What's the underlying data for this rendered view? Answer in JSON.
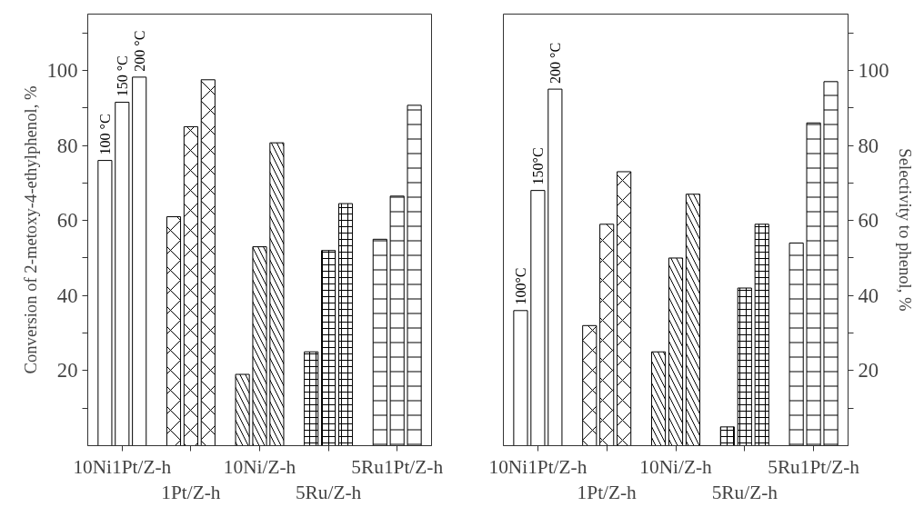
{
  "chart_data": [
    {
      "type": "bar",
      "categories": [
        "10Ni1Pt/Z-h",
        "1Pt/Z-h",
        "10Ni/Z-h",
        "5Ru/Z-h",
        "5Ru1Pt/Z-h"
      ],
      "series": [
        {
          "color": "#ffffff",
          "values": [
            76,
            61,
            19,
            25,
            55
          ]
        },
        {
          "color": "#ffffff",
          "values": [
            91.5,
            85,
            53,
            52,
            66.5
          ]
        },
        {
          "color": "#ffffff",
          "values": [
            98.2,
            97.5,
            80.7,
            64.5,
            90.7
          ]
        }
      ],
      "ylabel": "Conversion of 2-metoxy-4-ethylphenol, %",
      "ylim": [
        0,
        115
      ],
      "yticks": [
        {
          "value": 10,
          "label": null
        },
        20,
        {
          "value": 30,
          "label": null
        },
        40,
        {
          "value": 50,
          "label": null
        },
        60,
        {
          "value": 70,
          "label": null
        },
        80,
        {
          "value": 90,
          "label": null
        },
        100,
        {
          "value": 110,
          "label": null
        }
      ],
      "annotations": [
        "100 °C",
        "150 °C",
        "200 °C"
      ],
      "grid": false
    },
    {
      "type": "bar",
      "categories": [
        "10Ni1Pt/Z-h",
        "1Pt/Z-h",
        "10Ni/Z-h",
        "5Ru/Z-h",
        "5Ru1Pt/Z-h"
      ],
      "series": [
        {
          "color": "#ffffff",
          "axis": "y2",
          "values": [
            36,
            32,
            25,
            5,
            54
          ]
        },
        {
          "color": "#ffffff",
          "axis": "y2",
          "values": [
            68,
            59,
            50,
            42,
            86
          ]
        },
        {
          "color": "#ffffff",
          "axis": "y2",
          "values": [
            95,
            73,
            67,
            59,
            97
          ]
        }
      ],
      "y2label": "Selectivity to phenol, %",
      "y2lim": [
        0,
        115
      ],
      "y2ticks": [
        {
          "value": 10,
          "label": null
        },
        20,
        {
          "value": 30,
          "label": null
        },
        40,
        {
          "value": 50,
          "label": null
        },
        60,
        {
          "value": 70,
          "label": null
        },
        80,
        {
          "value": 90,
          "label": null
        },
        100,
        {
          "value": 110,
          "label": null
        }
      ],
      "annotations": [
        "100°C",
        "150°C",
        "200 °C"
      ],
      "grid": false
    }
  ]
}
